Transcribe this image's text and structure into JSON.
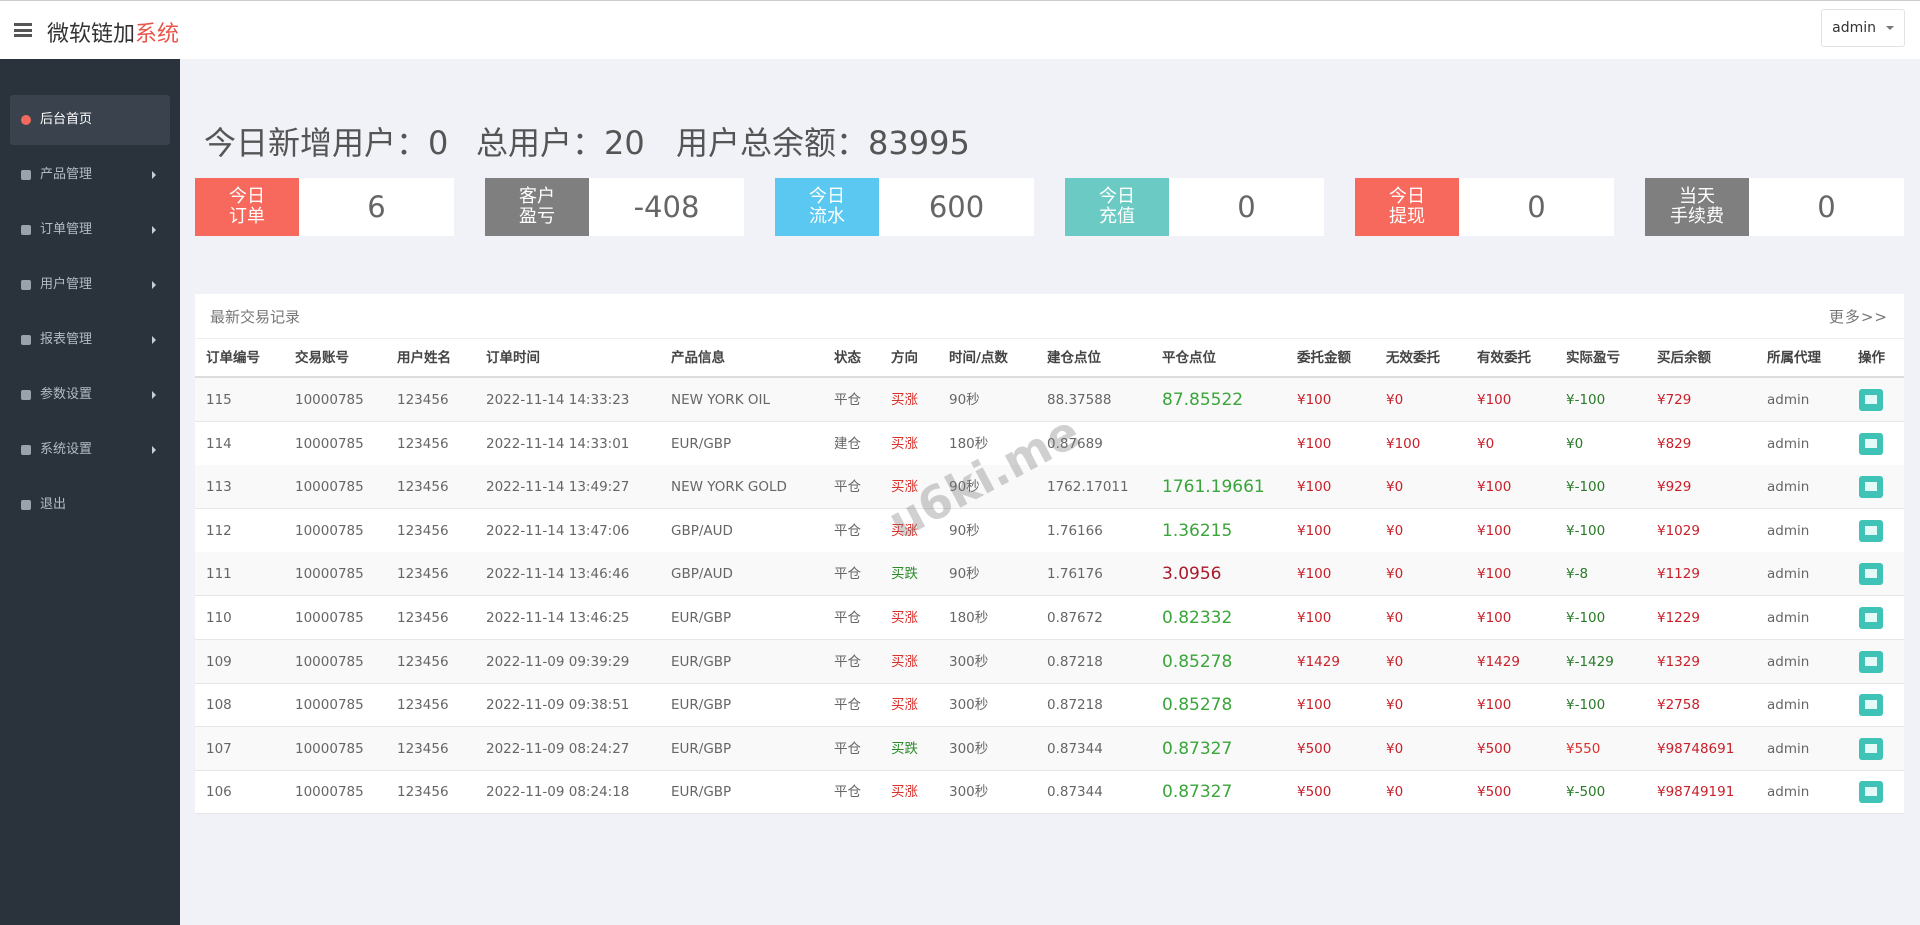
{
  "header": {
    "brand": "微软链加",
    "brand_accent": "系统",
    "user": "admin"
  },
  "sidebar": [
    {
      "label": "后台首页",
      "active": true,
      "submenu": false
    },
    {
      "label": "产品管理",
      "active": false,
      "submenu": true
    },
    {
      "label": "订单管理",
      "active": false,
      "submenu": true
    },
    {
      "label": "用户管理",
      "active": false,
      "submenu": true
    },
    {
      "label": "报表管理",
      "active": false,
      "submenu": true
    },
    {
      "label": "参数设置",
      "active": false,
      "submenu": true
    },
    {
      "label": "系统设置",
      "active": false,
      "submenu": true
    },
    {
      "label": "退出",
      "active": false,
      "submenu": false
    }
  ],
  "stats": [
    {
      "label": "今日新增用户：",
      "value": 0
    },
    {
      "label": "总用户：",
      "value": 20
    },
    {
      "label": "用户总余额：",
      "value": 83995
    }
  ],
  "cards": [
    {
      "label": [
        "今日",
        "订单"
      ],
      "value": 6,
      "color": "#f8695d"
    },
    {
      "label": [
        "客户",
        "盈亏"
      ],
      "value": -408,
      "color": "#7f7f7f"
    },
    {
      "label": [
        "今日",
        "流水"
      ],
      "value": 600,
      "color": "#5ac8f0"
    },
    {
      "label": [
        "今日",
        "充值"
      ],
      "value": 0,
      "color": "#6ccac4"
    },
    {
      "label": [
        "今日",
        "提现"
      ],
      "value": 0,
      "color": "#f8695d"
    },
    {
      "label": [
        "当天",
        "手续费"
      ],
      "value": 0,
      "color": "#7f7f7f"
    }
  ],
  "table": {
    "title": "最新交易记录",
    "more": "更多>>",
    "watermark": "u6ki.me",
    "columns": [
      "订单编号",
      "交易账号",
      "用户姓名",
      "订单时间",
      "产品信息",
      "状态",
      "方向",
      "时间/点数",
      "建仓点位",
      "平仓点位",
      "委托金额",
      "无效委托",
      "有效委托",
      "实际盈亏",
      "买后余额",
      "所属代理",
      "操作"
    ],
    "rows": [
      {
        "id": "115",
        "account": "10000785",
        "user": "123456",
        "time": "2022-11-14 14:33:23",
        "product": "NEW YORK OIL",
        "status": "平仓",
        "direction": "买涨",
        "dir_color": "#d9312b",
        "period": "90秒",
        "open": "88.37588",
        "close": "87.85522",
        "close_color": "#3aa53a",
        "amount": "¥100",
        "invalid": "¥0",
        "valid": "¥100",
        "pnl": "¥-100",
        "pnl_color": "#2a7a2a",
        "balance": "¥729",
        "agent": "admin"
      },
      {
        "id": "114",
        "account": "10000785",
        "user": "123456",
        "time": "2022-11-14 14:33:01",
        "product": "EUR/GBP",
        "status": "建仓",
        "direction": "买涨",
        "dir_color": "#d9312b",
        "period": "180秒",
        "open": "0.87689",
        "close": null,
        "close_color": "#3aa53a",
        "amount": "¥100",
        "invalid": "¥100",
        "valid": "¥0",
        "pnl": "¥0",
        "pnl_color": "#2a7a2a",
        "balance": "¥829",
        "agent": "admin"
      },
      {
        "id": "113",
        "account": "10000785",
        "user": "123456",
        "time": "2022-11-14 13:49:27",
        "product": "NEW YORK GOLD",
        "status": "平仓",
        "direction": "买涨",
        "dir_color": "#d9312b",
        "period": "90秒",
        "open": "1762.17011",
        "close": "1761.19661",
        "close_color": "#3aa53a",
        "amount": "¥100",
        "invalid": "¥0",
        "valid": "¥100",
        "pnl": "¥-100",
        "pnl_color": "#2a7a2a",
        "balance": "¥929",
        "agent": "admin"
      },
      {
        "id": "112",
        "account": "10000785",
        "user": "123456",
        "time": "2022-11-14 13:47:06",
        "product": "GBP/AUD",
        "status": "平仓",
        "direction": "买涨",
        "dir_color": "#d9312b",
        "period": "90秒",
        "open": "1.76166",
        "close": "1.36215",
        "close_color": "#3aa53a",
        "amount": "¥100",
        "invalid": "¥0",
        "valid": "¥100",
        "pnl": "¥-100",
        "pnl_color": "#2a7a2a",
        "balance": "¥1029",
        "agent": "admin"
      },
      {
        "id": "111",
        "account": "10000785",
        "user": "123456",
        "time": "2022-11-14 13:46:46",
        "product": "GBP/AUD",
        "status": "平仓",
        "direction": "买跌",
        "dir_color": "#2a8a2a",
        "period": "90秒",
        "open": "1.76176",
        "close": "3.0956",
        "close_color": "#a8192a",
        "amount": "¥100",
        "invalid": "¥0",
        "valid": "¥100",
        "pnl": "¥-8",
        "pnl_color": "#2a7a2a",
        "balance": "¥1129",
        "agent": "admin"
      },
      {
        "id": "110",
        "account": "10000785",
        "user": "123456",
        "time": "2022-11-14 13:46:25",
        "product": "EUR/GBP",
        "status": "平仓",
        "direction": "买涨",
        "dir_color": "#d9312b",
        "period": "180秒",
        "open": "0.87672",
        "close": "0.82332",
        "close_color": "#3aa53a",
        "amount": "¥100",
        "invalid": "¥0",
        "valid": "¥100",
        "pnl": "¥-100",
        "pnl_color": "#2a7a2a",
        "balance": "¥1229",
        "agent": "admin"
      },
      {
        "id": "109",
        "account": "10000785",
        "user": "123456",
        "time": "2022-11-09 09:39:29",
        "product": "EUR/GBP",
        "status": "平仓",
        "direction": "买涨",
        "dir_color": "#d9312b",
        "period": "300秒",
        "open": "0.87218",
        "close": "0.85278",
        "close_color": "#3aa53a",
        "amount": "¥1429",
        "invalid": "¥0",
        "valid": "¥1429",
        "pnl": "¥-1429",
        "pnl_color": "#2a7a2a",
        "balance": "¥1329",
        "agent": "admin"
      },
      {
        "id": "108",
        "account": "10000785",
        "user": "123456",
        "time": "2022-11-09 09:38:51",
        "product": "EUR/GBP",
        "status": "平仓",
        "direction": "买涨",
        "dir_color": "#d9312b",
        "period": "300秒",
        "open": "0.87218",
        "close": "0.85278",
        "close_color": "#3aa53a",
        "amount": "¥100",
        "invalid": "¥0",
        "valid": "¥100",
        "pnl": "¥-100",
        "pnl_color": "#2a7a2a",
        "balance": "¥2758",
        "agent": "admin"
      },
      {
        "id": "107",
        "account": "10000785",
        "user": "123456",
        "time": "2022-11-09 08:24:27",
        "product": "EUR/GBP",
        "status": "平仓",
        "direction": "买跌",
        "dir_color": "#2a8a2a",
        "period": "300秒",
        "open": "0.87344",
        "close": "0.87327",
        "close_color": "#3aa53a",
        "amount": "¥500",
        "invalid": "¥0",
        "valid": "¥500",
        "pnl": "¥550",
        "pnl_color": "#d9312b",
        "balance": "¥98748691",
        "agent": "admin"
      },
      {
        "id": "106",
        "account": "10000785",
        "user": "123456",
        "time": "2022-11-09 08:24:18",
        "product": "EUR/GBP",
        "status": "平仓",
        "direction": "买涨",
        "dir_color": "#d9312b",
        "period": "300秒",
        "open": "0.87344",
        "close": "0.87327",
        "close_color": "#3aa53a",
        "amount": "¥500",
        "invalid": "¥0",
        "valid": "¥500",
        "pnl": "¥-500",
        "pnl_color": "#2a7a2a",
        "balance": "¥98749191",
        "agent": "admin"
      }
    ]
  }
}
